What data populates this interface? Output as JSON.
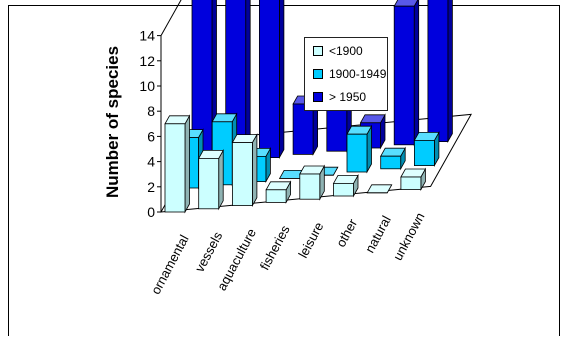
{
  "chart_data": {
    "type": "bar",
    "subtype": "3d-grouped-bar",
    "title": "",
    "xlabel": "",
    "ylabel": "Number of species",
    "ylim": [
      0,
      14
    ],
    "yticks": [
      "0",
      "2",
      "4",
      "6",
      "8",
      "10",
      "12",
      "14"
    ],
    "categories": [
      "ornamental",
      "vessels",
      "aquaculture",
      "fisheries",
      "leisure",
      "other",
      "natural",
      "unknown"
    ],
    "series": [
      {
        "name": "<1900",
        "color": "#ccffff",
        "values": [
          7,
          4,
          5,
          1,
          2,
          1,
          0,
          1
        ]
      },
      {
        "name": "1900-1949",
        "color": "#00ccff",
        "values": [
          4,
          5,
          2,
          0,
          0,
          3,
          1,
          2
        ]
      },
      {
        "name": "> 1950",
        "color": "#0000dd",
        "values": [
          15,
          14,
          13,
          4,
          4,
          2,
          11,
          14
        ]
      }
    ],
    "legend": {
      "position": "top-center"
    },
    "grid": false
  }
}
